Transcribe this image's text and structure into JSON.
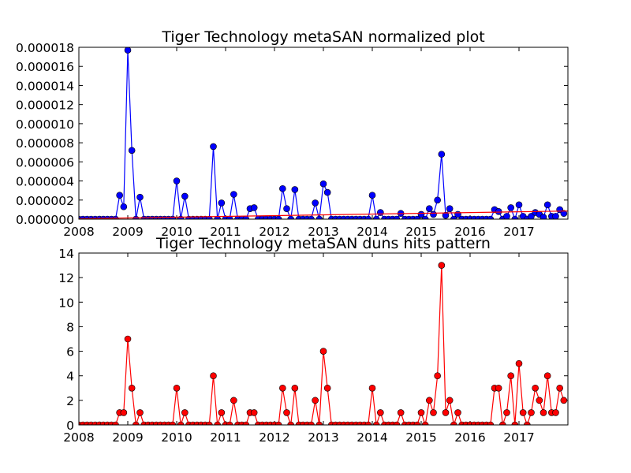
{
  "chart_data": [
    {
      "type": "line",
      "title": "Tiger Technology metaSAN normalized plot",
      "xlabel": "",
      "ylabel": "",
      "xlim": [
        2008.0,
        2018.0
      ],
      "ylim": [
        0,
        1.8e-05
      ],
      "x_ticks": [
        2008,
        2009,
        2010,
        2011,
        2012,
        2013,
        2014,
        2015,
        2016,
        2017
      ],
      "y_ticks": [
        0,
        2e-06,
        4e-06,
        6e-06,
        8e-06,
        1e-05,
        1.2e-05,
        1.4e-05,
        1.6e-05,
        1.8e-05
      ],
      "x_tick_labels": [
        "2008",
        "2009",
        "2010",
        "2011",
        "2012",
        "2013",
        "2014",
        "2015",
        "2016",
        "2017"
      ],
      "y_tick_labels": [
        "0.000000",
        "0.000002",
        "0.000004",
        "0.000006",
        "0.000008",
        "0.000010",
        "0.000012",
        "0.000014",
        "0.000016",
        "0.000018"
      ],
      "grid": false,
      "series": [
        {
          "style": "line-with-markers",
          "color": "#0000ff",
          "start_year": 2008,
          "start_month": 1,
          "months": 120,
          "values": [
            0,
            0,
            0,
            0,
            0,
            0,
            0,
            0,
            0,
            0,
            2.5e-06,
            1.3e-06,
            1.77e-05,
            7.2e-06,
            0,
            2.3e-06,
            0,
            0,
            0,
            0,
            0,
            0,
            0,
            0,
            4e-06,
            0,
            2.4e-06,
            0,
            0,
            0,
            0,
            0,
            0,
            7.6e-06,
            0,
            1.7e-06,
            0,
            0,
            2.6e-06,
            0,
            0,
            0,
            1.1e-06,
            1.2e-06,
            0,
            0,
            0,
            0,
            0,
            0,
            3.2e-06,
            1.1e-06,
            0,
            3.1e-06,
            0,
            0,
            0,
            0,
            1.7e-06,
            0,
            3.7e-06,
            2.8e-06,
            0,
            0,
            0,
            0,
            0,
            0,
            0,
            0,
            0,
            0,
            2.5e-06,
            0,
            7e-07,
            0,
            0,
            0,
            0,
            6e-07,
            0,
            0,
            0,
            0,
            5e-07,
            0,
            1.1e-06,
            5e-07,
            2e-06,
            6.8e-06,
            4e-07,
            1.1e-06,
            0,
            5e-07,
            0,
            0,
            0,
            0,
            0,
            0,
            0,
            0,
            1e-06,
            8e-07,
            0,
            3e-07,
            1.2e-06,
            0,
            1.5e-06,
            3e-07,
            0,
            3e-07,
            7e-07,
            5e-07,
            2e-07,
            1.5e-06,
            3e-07,
            3e-07,
            1e-06,
            6e-07
          ]
        },
        {
          "style": "trend-line",
          "color": "#ff0000",
          "x": [
            2008.0,
            2018.0
          ],
          "values": [
            5e-08,
            8.5e-07
          ]
        }
      ]
    },
    {
      "type": "line",
      "title": "Tiger Technology metaSAN duns hits pattern",
      "xlabel": "",
      "ylabel": "",
      "xlim": [
        2008.0,
        2018.0
      ],
      "ylim": [
        0,
        14
      ],
      "x_ticks": [
        2008,
        2009,
        2010,
        2011,
        2012,
        2013,
        2014,
        2015,
        2016,
        2017
      ],
      "y_ticks": [
        0,
        2,
        4,
        6,
        8,
        10,
        12,
        14
      ],
      "x_tick_labels": [
        "2008",
        "2009",
        "2010",
        "2011",
        "2012",
        "2013",
        "2014",
        "2015",
        "2016",
        "2017"
      ],
      "y_tick_labels": [
        "0",
        "2",
        "4",
        "6",
        "8",
        "10",
        "12",
        "14"
      ],
      "grid": false,
      "series": [
        {
          "style": "line-with-markers",
          "color": "#ff0000",
          "start_year": 2008,
          "start_month": 1,
          "months": 120,
          "values": [
            0,
            0,
            0,
            0,
            0,
            0,
            0,
            0,
            0,
            0,
            1,
            1,
            7,
            3,
            0,
            1,
            0,
            0,
            0,
            0,
            0,
            0,
            0,
            0,
            3,
            0,
            1,
            0,
            0,
            0,
            0,
            0,
            0,
            4,
            0,
            1,
            0,
            0,
            2,
            0,
            0,
            0,
            1,
            1,
            0,
            0,
            0,
            0,
            0,
            0,
            3,
            1,
            0,
            3,
            0,
            0,
            0,
            0,
            2,
            0,
            6,
            3,
            0,
            0,
            0,
            0,
            0,
            0,
            0,
            0,
            0,
            0,
            3,
            0,
            1,
            0,
            0,
            0,
            0,
            1,
            0,
            0,
            0,
            0,
            1,
            0,
            2,
            1,
            4,
            13,
            1,
            2,
            0,
            1,
            0,
            0,
            0,
            0,
            0,
            0,
            0,
            0,
            3,
            3,
            0,
            1,
            4,
            0,
            5,
            1,
            0,
            1,
            3,
            2,
            1,
            4,
            1,
            1,
            3,
            2
          ]
        }
      ]
    }
  ]
}
